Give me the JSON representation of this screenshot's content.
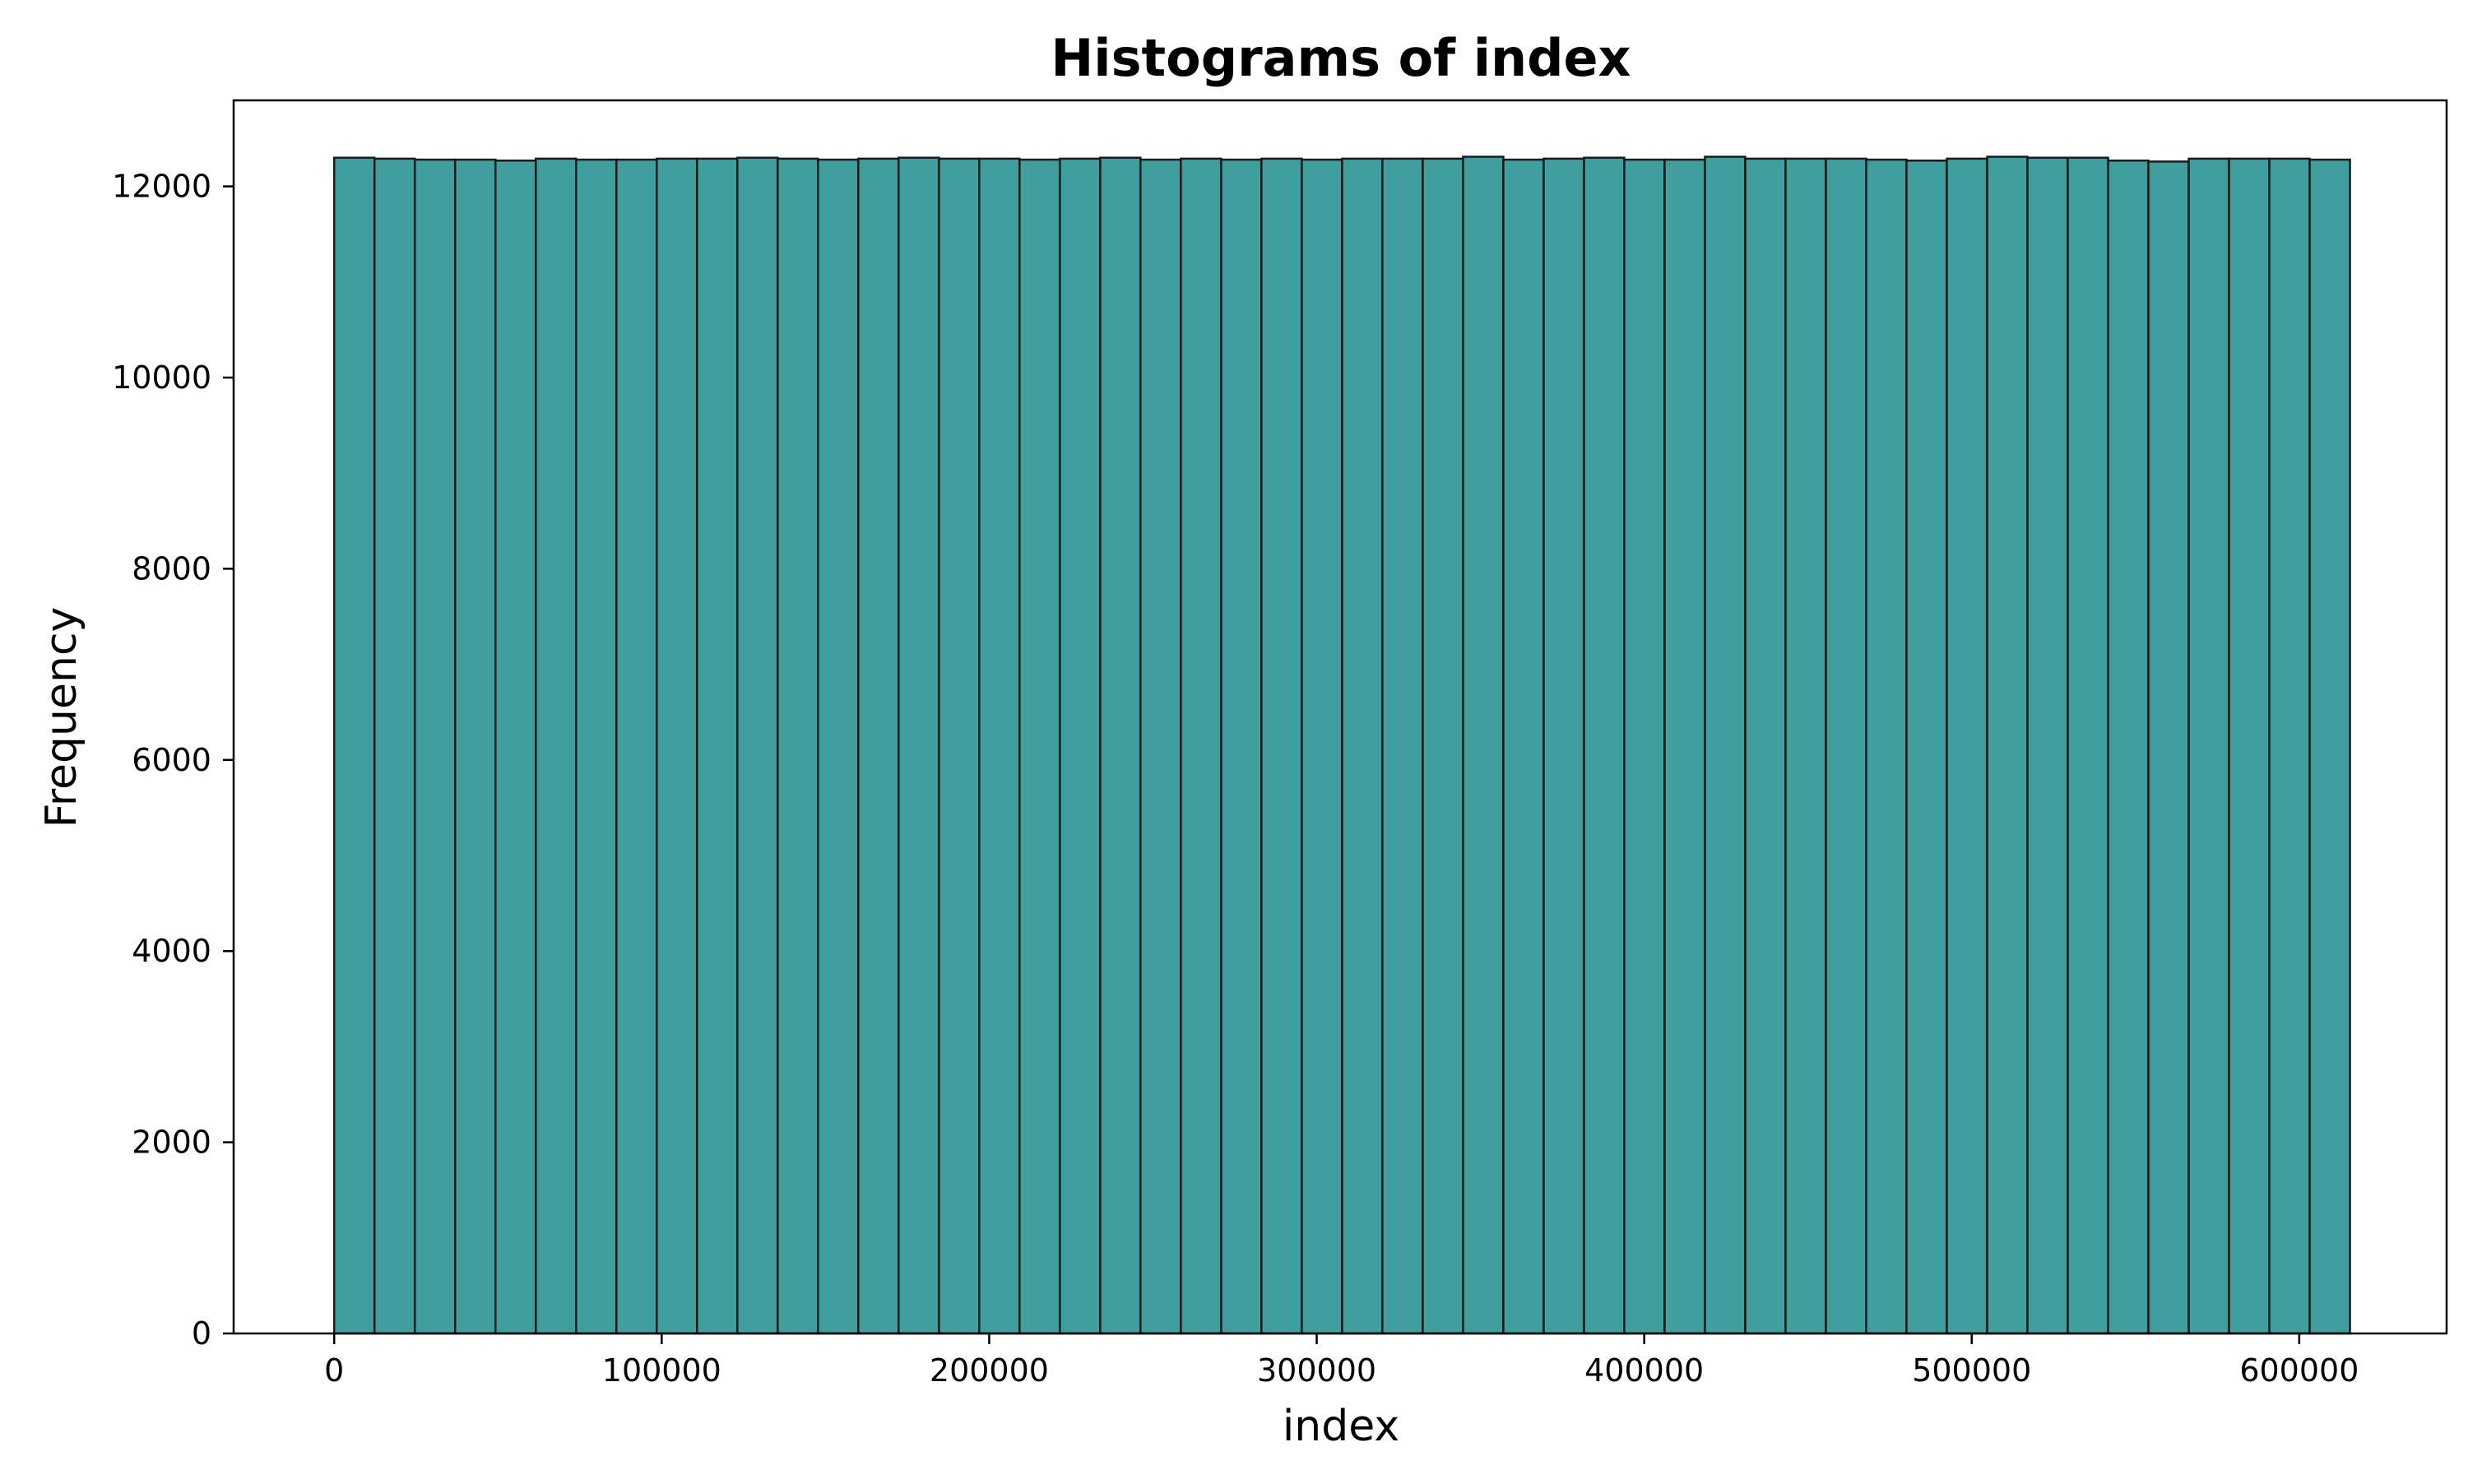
{
  "chart_data": {
    "type": "histogram",
    "title": "Histograms of index",
    "xlabel": "index",
    "ylabel": "Frequency",
    "xlim": [
      -30700,
      645000
    ],
    "ylim": [
      0,
      12900
    ],
    "bin_start": 0,
    "bin_width": 12310,
    "values": [
      12300,
      12290,
      12280,
      12280,
      12270,
      12290,
      12280,
      12280,
      12290,
      12290,
      12300,
      12290,
      12280,
      12290,
      12300,
      12290,
      12290,
      12280,
      12290,
      12300,
      12280,
      12290,
      12280,
      12290,
      12280,
      12290,
      12290,
      12290,
      12310,
      12280,
      12290,
      12300,
      12280,
      12280,
      12310,
      12290,
      12290,
      12290,
      12280,
      12270,
      12290,
      12310,
      12300,
      12300,
      12270,
      12260,
      12290,
      12290,
      12290,
      12280
    ],
    "xticks": [
      0,
      100000,
      200000,
      300000,
      400000,
      500000,
      600000
    ],
    "yticks": [
      0,
      2000,
      4000,
      6000,
      8000,
      10000,
      12000
    ],
    "bar_color": "#3f9f9f",
    "edge_color": "#1a1a1a",
    "grid": false
  }
}
